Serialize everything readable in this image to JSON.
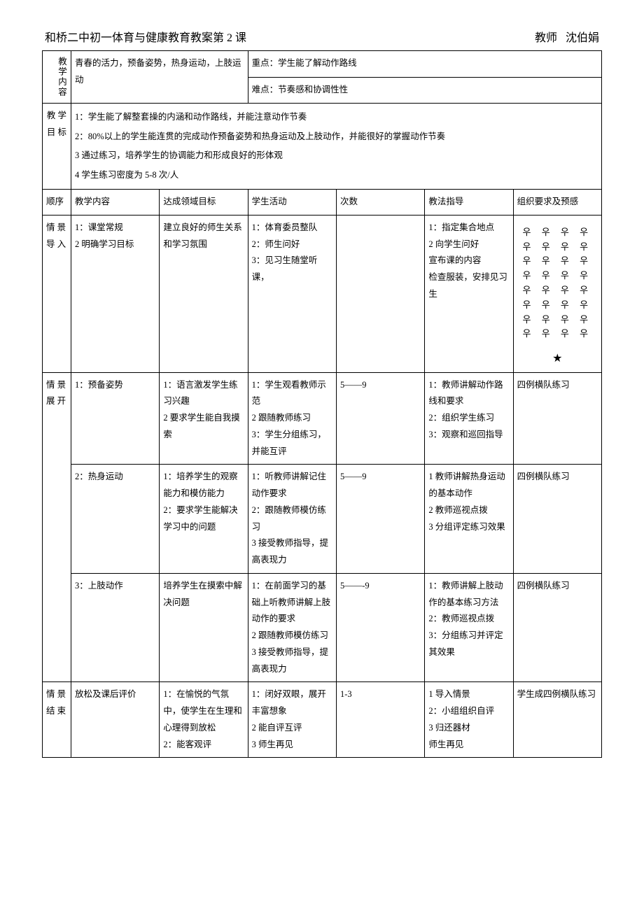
{
  "header": {
    "title_left": "和桥二中初一体育与健康教育教案第 2 课",
    "title_right_label": "教师",
    "title_right_name": "沈伯娟"
  },
  "top": {
    "section_label": "教学内容",
    "content_text": "青春的活力，预备姿势，热身运动，上肢运动",
    "keypoint_label": "重点：学生能了解动作路线",
    "difficulty_label": "难点：节奏感和协调性性"
  },
  "goals": {
    "label": "教 学目 标",
    "line1": "1：学生能了解整套操的内涵和动作路线，并能注意动作节奏",
    "line2": "2：80%以上的学生能连贯的完成动作预备姿势和热身运动及上肢动作，并能很好的掌握动作节奏",
    "line3": "3 通过练习，培养学生的协调能力和形成良好的形体观",
    "line4": "4 学生练习密度为    5-8 次/人"
  },
  "columns": {
    "c1": "顺序",
    "c2": "教学内容",
    "c3": "达成领域目标",
    "c4": "学生活动",
    "c5": "次数",
    "c6": "教法指导",
    "c7": "组织要求及预感"
  },
  "rows": {
    "intro": {
      "seq": "情 景导 入",
      "content": "1：课堂常规\n2 明确学习目标",
      "goal": "建立良好的师生关系和学习氛围",
      "activity": "1：体育委员整队\n2：师生问好\n3：见习生随堂听课，",
      "count": "",
      "guide": "1：指定集合地点\n2 向学生问好\n宣布课的内容\n检查服装，安排见习生",
      "org_symbol": "우 우 우 우 우 우 우 우",
      "org_star": "★"
    },
    "dev1": {
      "seq": "情 景展 开",
      "content": "1：预备姿势",
      "goal": "1：语言激发学生练习兴趣\n2 要求学生能自我摸索",
      "activity": "1：学生观看教师示范\n2 跟随教师练习\n3：学生分组练习，并能互评",
      "count": "5——9",
      "guide": "1：教师讲解动作路线和要求\n2：组织学生练习\n3：观察和巡回指导",
      "org": "四例横队练习"
    },
    "dev2": {
      "content": "2：热身运动",
      "goal": "1：培养学生的观察能力和模仿能力\n2：要求学生能解决学习中的问题",
      "activity": "1：听教师讲解记住动作要求\n2：跟随教师模仿练习\n3 接受教师指导，提高表现力",
      "count": "5——9",
      "guide": "1 教师讲解热身运动的基本动作\n2 教师巡视点拨\n3 分组评定练习效果",
      "org": "四例横队练习"
    },
    "dev3": {
      "content": "3：上肢动作",
      "goal": "培养学生在摸索中解决问题",
      "activity": "1：在前面学习的基础上听教师讲解上肢动作的要求\n2 跟随教师模仿练习\n3 接受教师指导，提高表现力",
      "count": "5——-9",
      "guide": "1：教师讲解上肢动作的基本练习方法\n2：教师巡视点拨\n3：分组练习并评定其效果",
      "org": "四例横队练习"
    },
    "end": {
      "seq": "情 景结 束",
      "content": "放松及课后评价",
      "goal": "1：在愉悦的气氛中，使学生在生理和心理得到放松\n2：能客观评",
      "activity": "1：闭好双眼，展开丰富想象\n2 能自评互评\n3 师生再见",
      "count": "1-3",
      "guide": "1 导入情景\n2：小组组织自评\n3 归还器材\n师生再见",
      "org": "学生成四例横队练习"
    }
  }
}
